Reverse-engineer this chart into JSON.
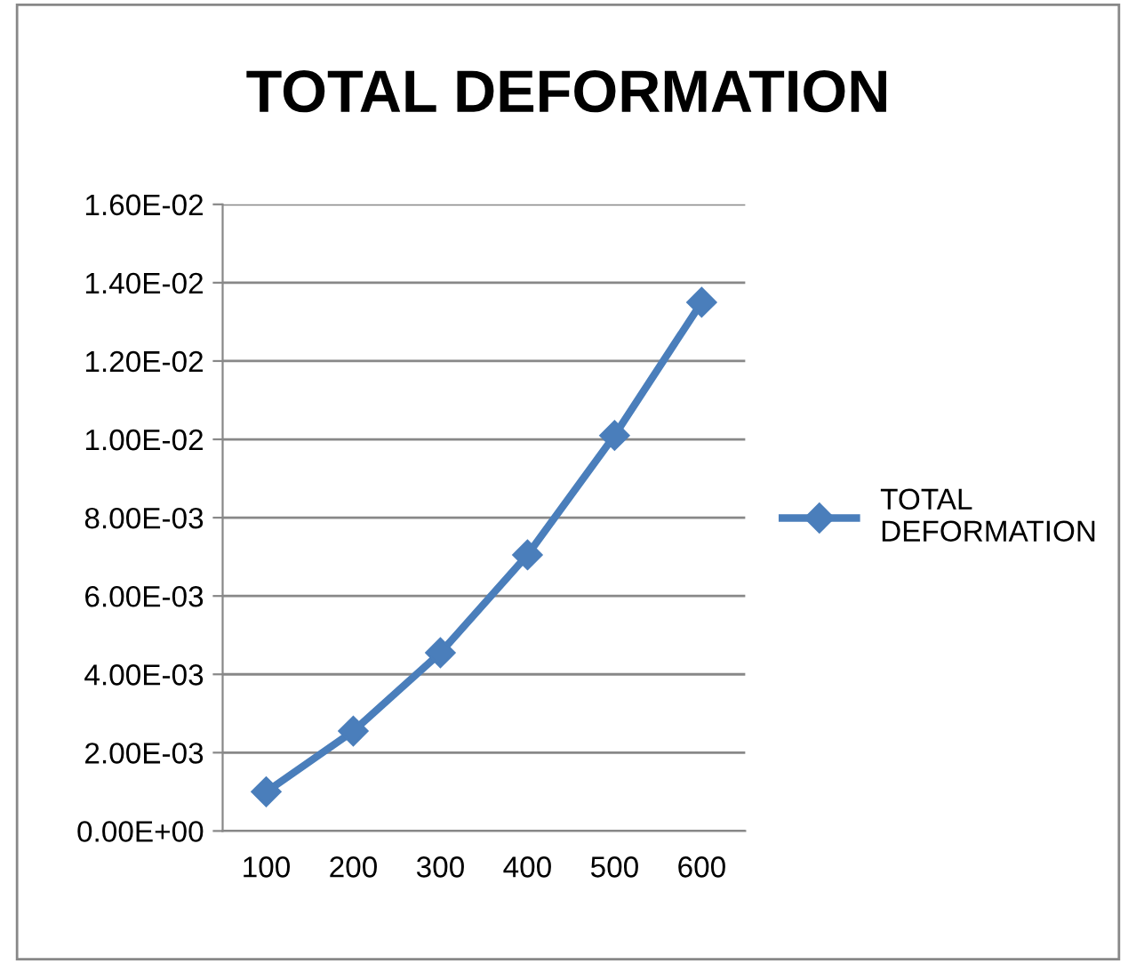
{
  "chart_data": {
    "type": "line",
    "title": "TOTAL DEFORMATION",
    "categories": [
      "100",
      "200",
      "300",
      "400",
      "500",
      "600"
    ],
    "series": [
      {
        "name": "TOTAL\nDEFORMATION",
        "color": "#4a7ebb",
        "values": [
          0.001,
          0.00255,
          0.00455,
          0.00705,
          0.0101,
          0.0135
        ]
      }
    ],
    "ylim": [
      0,
      0.016
    ],
    "yticks": [
      {
        "value": 0,
        "label": "0.00E+00"
      },
      {
        "value": 0.002,
        "label": "2.00E-03"
      },
      {
        "value": 0.004,
        "label": "4.00E-03"
      },
      {
        "value": 0.006,
        "label": "6.00E-03"
      },
      {
        "value": 0.008,
        "label": "8.00E-03"
      },
      {
        "value": 0.01,
        "label": "1.00E-02"
      },
      {
        "value": 0.012,
        "label": "1.20E-02"
      },
      {
        "value": 0.014,
        "label": "1.40E-02"
      },
      {
        "value": 0.016,
        "label": "1.60E-02"
      }
    ],
    "grid": "y",
    "legend": "right",
    "marker": "diamond",
    "line_style": "solid"
  }
}
